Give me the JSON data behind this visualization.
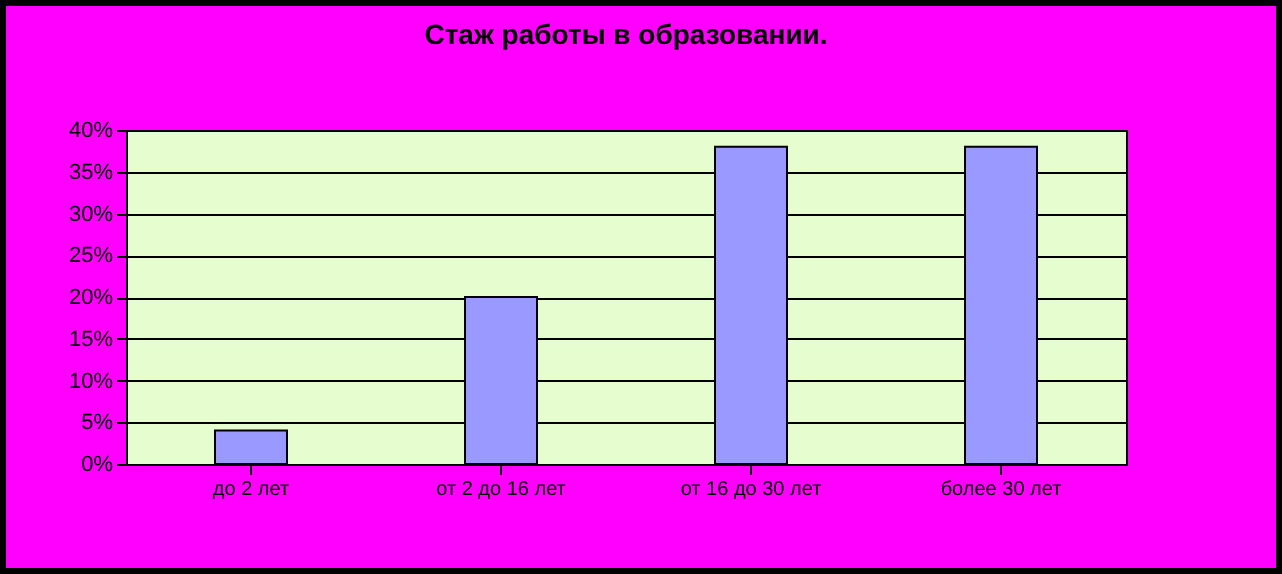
{
  "chart_data": {
    "type": "bar",
    "title": "Стаж работы в образовании.",
    "categories": [
      "до 2 лет",
      "от 2 до 16 лет",
      "от 16 до 30 лет",
      "более 30 лет"
    ],
    "values": [
      4,
      20,
      38,
      38
    ],
    "color": "#9999ff",
    "ylim": [
      0,
      40
    ],
    "yticks": [
      {
        "value": 0,
        "label": "0%"
      },
      {
        "value": 5,
        "label": "5%"
      },
      {
        "value": 10,
        "label": "10%"
      },
      {
        "value": 15,
        "label": "15%"
      },
      {
        "value": 20,
        "label": "20%"
      },
      {
        "value": 25,
        "label": "25%"
      },
      {
        "value": 30,
        "label": "30%"
      },
      {
        "value": 35,
        "label": "35%"
      },
      {
        "value": 40,
        "label": "40%"
      }
    ],
    "grid": true
  }
}
